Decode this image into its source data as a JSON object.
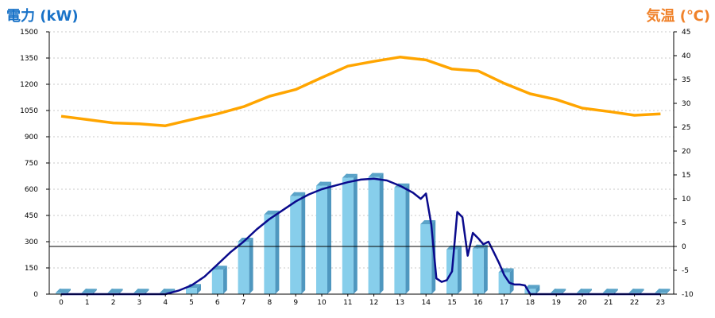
{
  "chart_data": {
    "type": "bar",
    "title_left": "電力 (kW)",
    "title_right": "気温 (℃)",
    "categories": [
      "0",
      "1",
      "2",
      "3",
      "4",
      "5",
      "6",
      "7",
      "8",
      "9",
      "10",
      "11",
      "12",
      "13",
      "14",
      "15",
      "16",
      "17",
      "18",
      "19",
      "20",
      "21",
      "22",
      "23"
    ],
    "y_left": {
      "range": [
        0,
        1500
      ],
      "ticks": [
        0,
        150,
        300,
        450,
        600,
        750,
        900,
        1050,
        1200,
        1350,
        1500
      ]
    },
    "y_right": {
      "range": [
        -10,
        45
      ],
      "ticks": [
        -10,
        -5,
        0,
        5,
        10,
        15,
        20,
        25,
        30,
        35,
        40,
        45
      ]
    },
    "grid": true,
    "bars": {
      "axis": "left",
      "color": "#87ceeb",
      "values": [
        8,
        8,
        8,
        8,
        8,
        35,
        140,
        300,
        455,
        560,
        620,
        665,
        670,
        610,
        400,
        255,
        260,
        125,
        30,
        8,
        8,
        8,
        8,
        8
      ]
    },
    "power_line": {
      "axis": "left",
      "color": "#0a0a8c",
      "x": [
        0,
        1,
        2,
        3,
        4,
        4.5,
        5,
        5.5,
        6,
        6.5,
        7,
        7.5,
        8,
        8.5,
        9,
        9.5,
        10,
        10.5,
        11,
        11.5,
        12,
        12.5,
        13,
        13.5,
        13.8,
        14,
        14.2,
        14.4,
        14.6,
        14.8,
        15,
        15.2,
        15.4,
        15.6,
        15.8,
        16,
        16.2,
        16.4,
        16.6,
        16.8,
        17,
        17.2,
        17.4,
        17.6,
        17.8,
        18,
        19,
        20,
        21,
        22,
        23
      ],
      "y": [
        0,
        0,
        0,
        0,
        0,
        20,
        50,
        100,
        170,
        240,
        300,
        370,
        430,
        480,
        530,
        570,
        600,
        620,
        640,
        655,
        660,
        650,
        620,
        580,
        545,
        575,
        400,
        90,
        70,
        80,
        130,
        470,
        440,
        220,
        350,
        320,
        285,
        300,
        240,
        180,
        110,
        65,
        55,
        55,
        50,
        0,
        0,
        0,
        0,
        0,
        0
      ]
    },
    "temp_line": {
      "axis": "right",
      "color": "#ffa500",
      "x": [
        0,
        1,
        2,
        3,
        4,
        5,
        6,
        7,
        8,
        9,
        10,
        11,
        12,
        13,
        14,
        15,
        16,
        17,
        18,
        19,
        20,
        21,
        22,
        23
      ],
      "y": [
        27.3,
        26.6,
        25.9,
        25.7,
        25.3,
        26.6,
        27.8,
        29.3,
        31.5,
        32.9,
        35.4,
        37.8,
        38.8,
        39.7,
        39.1,
        37.2,
        36.8,
        34.2,
        32.0,
        30.8,
        29.0,
        28.3,
        27.5,
        27.8
      ]
    }
  }
}
